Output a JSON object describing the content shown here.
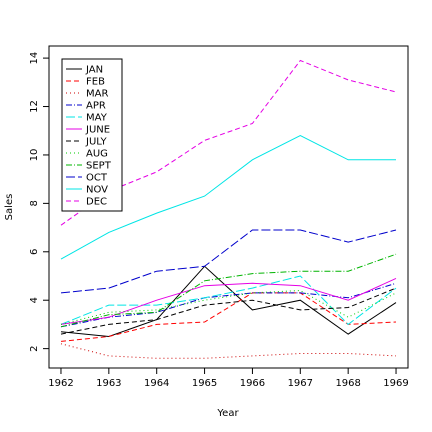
{
  "chart_data": {
    "type": "line",
    "title": "",
    "xlabel": "Year",
    "ylabel": "Sales",
    "x": [
      1962,
      1963,
      1964,
      1965,
      1966,
      1967,
      1968,
      1969
    ],
    "x_ticks": [
      "1962",
      "1963",
      "1964",
      "1965",
      "1966",
      "1967",
      "1968",
      "1969"
    ],
    "y_ticks": [
      "2",
      "4",
      "6",
      "8",
      "10",
      "12",
      "14"
    ],
    "ylim": [
      1.2,
      14.5
    ],
    "xlim": [
      1961.75,
      1969.25
    ],
    "grid": false,
    "legend_position": "top-left",
    "series": [
      {
        "name": "JAN",
        "color": "#000000",
        "dash": "solid",
        "values": [
          2.7,
          2.5,
          3.2,
          5.4,
          3.6,
          4.0,
          2.6,
          3.9
        ]
      },
      {
        "name": "FEB",
        "color": "#FF0000",
        "dash": "dashed",
        "values": [
          2.3,
          2.5,
          3.0,
          3.1,
          4.3,
          4.3,
          3.0,
          3.1
        ]
      },
      {
        "name": "MAR",
        "color": "#CC0000",
        "dash": "dotted",
        "values": [
          2.2,
          1.7,
          1.6,
          1.6,
          1.7,
          1.8,
          1.8,
          1.7
        ]
      },
      {
        "name": "APR",
        "color": "#0000CC",
        "dash": "dashdot",
        "values": [
          2.9,
          3.3,
          3.5,
          4.1,
          4.3,
          4.3,
          4.1,
          4.7
        ]
      },
      {
        "name": "MAY",
        "color": "#00E5E5",
        "dash": "longdash",
        "values": [
          3.0,
          3.8,
          3.8,
          4.1,
          4.5,
          5.0,
          3.0,
          4.5
        ]
      },
      {
        "name": "JUNE",
        "color": "#E500E5",
        "dash": "solid",
        "values": [
          3.0,
          3.3,
          4.0,
          4.6,
          4.7,
          4.6,
          4.0,
          4.9
        ]
      },
      {
        "name": "JULY",
        "color": "#000000",
        "dash": "dashed",
        "values": [
          2.6,
          3.0,
          3.2,
          3.8,
          4.0,
          3.6,
          3.7,
          4.5
        ]
      },
      {
        "name": "AUG",
        "color": "#00CC00",
        "dash": "dotted",
        "values": [
          3.0,
          3.5,
          3.6,
          4.0,
          4.3,
          4.4,
          3.3,
          4.3
        ]
      },
      {
        "name": "SEPT",
        "color": "#00B400",
        "dash": "dashdot",
        "values": [
          2.9,
          3.4,
          3.5,
          4.8,
          5.1,
          5.2,
          5.2,
          5.9
        ]
      },
      {
        "name": "OCT",
        "color": "#0000CC",
        "dash": "longdash",
        "values": [
          4.3,
          4.5,
          5.2,
          5.4,
          6.9,
          6.9,
          6.4,
          6.9
        ]
      },
      {
        "name": "NOV",
        "color": "#00E5E5",
        "dash": "solid",
        "values": [
          5.7,
          6.8,
          7.6,
          8.3,
          9.8,
          10.8,
          9.8,
          9.8
        ]
      },
      {
        "name": "DEC",
        "color": "#E500E5",
        "dash": "dashed",
        "values": [
          7.1,
          8.5,
          9.3,
          10.6,
          11.3,
          13.9,
          13.1,
          12.6
        ]
      }
    ]
  }
}
